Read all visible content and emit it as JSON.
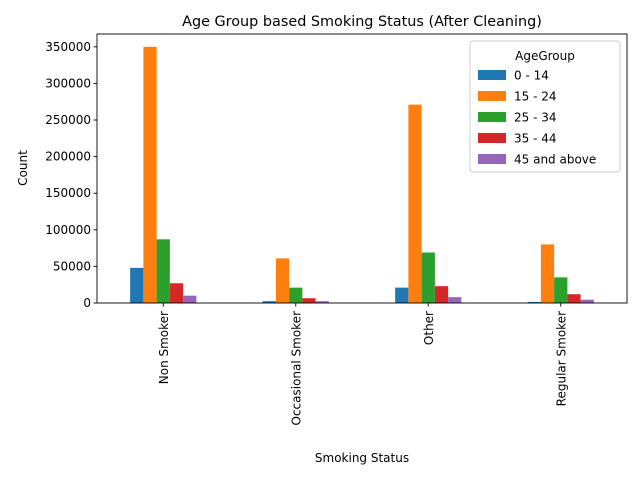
{
  "chart_data": {
    "type": "bar",
    "title": "Age Group based Smoking Status (After Cleaning)",
    "xlabel": "Smoking Status",
    "ylabel": "Count",
    "categories": [
      "Non Smoker",
      "Occasional Smoker",
      "Other",
      "Regular Smoker"
    ],
    "ylim": [
      0,
      367500
    ],
    "yticks": [
      "0",
      "50000",
      "100000",
      "150000",
      "200000",
      "250000",
      "300000",
      "350000"
    ],
    "grid": false,
    "legend": {
      "title": "AgeGroup",
      "placement": "top-right"
    },
    "series": [
      {
        "name": "0 - 14",
        "color": "#1f77b4",
        "values": [
          48000,
          2500,
          21000,
          1500
        ]
      },
      {
        "name": "15 - 24",
        "color": "#ff7f0e",
        "values": [
          350000,
          61000,
          271000,
          80000
        ]
      },
      {
        "name": "25 - 34",
        "color": "#2ca02c",
        "values": [
          87000,
          21000,
          69000,
          35000
        ]
      },
      {
        "name": "35 - 44",
        "color": "#d62728",
        "values": [
          27000,
          6500,
          23000,
          12000
        ]
      },
      {
        "name": "45 and above",
        "color": "#9467bd",
        "values": [
          10000,
          2500,
          8000,
          4500
        ]
      }
    ]
  }
}
